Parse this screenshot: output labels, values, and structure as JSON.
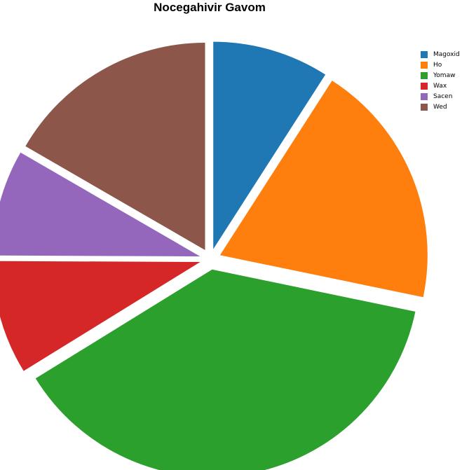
{
  "chart_data": {
    "type": "pie",
    "title": "Nocegahivir Gavom",
    "legend_position": "top-right",
    "categories": [
      "Magoxid",
      "Ho",
      "Yomaw",
      "Wax",
      "Sacen",
      "Wed"
    ],
    "values": [
      9.0,
      19.0,
      37.6,
      8.8,
      8.2,
      16.5
    ],
    "colors": [
      "#1f77b4",
      "#ff7f0e",
      "#2ca02c",
      "#d62728",
      "#9467bd",
      "#8c564b"
    ],
    "start_angle_deg": 90,
    "direction": "clockwise",
    "exploded": true
  }
}
